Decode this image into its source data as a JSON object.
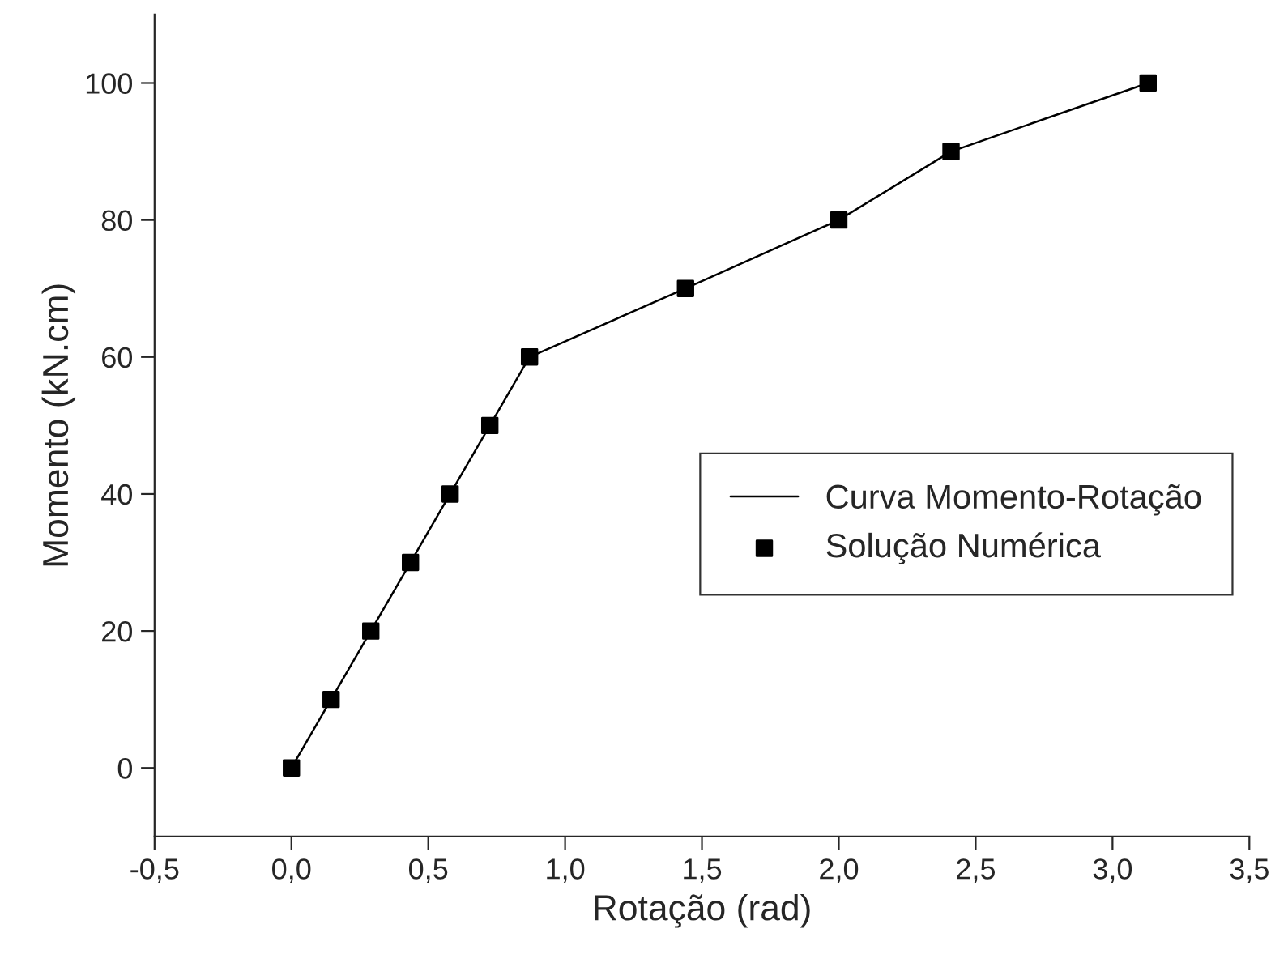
{
  "chart_data": {
    "type": "line",
    "xlabel": "Rotação (rad)",
    "ylabel": "Momento (kN.cm)",
    "xlim": [
      -0.5,
      3.5
    ],
    "ylim": [
      -10,
      110
    ],
    "xticks": [
      {
        "value": -0.5,
        "label": "-0,5"
      },
      {
        "value": 0,
        "label": "0,0"
      },
      {
        "value": 0.5,
        "label": "0,5"
      },
      {
        "value": 1.0,
        "label": "1,0"
      },
      {
        "value": 1.5,
        "label": "1,5"
      },
      {
        "value": 2.0,
        "label": "2,0"
      },
      {
        "value": 2.5,
        "label": "2,5"
      },
      {
        "value": 3.0,
        "label": "3,0"
      },
      {
        "value": 3.5,
        "label": "3,5"
      }
    ],
    "yticks": [
      0,
      20,
      40,
      60,
      80,
      100
    ],
    "legend": "right",
    "grid": false,
    "series": [
      {
        "name": "Curva Momento-Rotação",
        "color": "#000000",
        "marker": "none",
        "x": [
          0,
          0.145,
          0.29,
          0.435,
          0.58,
          0.725,
          0.87,
          1.44,
          2.0,
          2.41,
          3.13
        ],
        "values": [
          0,
          10,
          20,
          30,
          40,
          50,
          60,
          70,
          80,
          90,
          100
        ]
      },
      {
        "name": "Solução Numérica",
        "type": "scatter",
        "color": "#000000",
        "marker": "square",
        "x": [
          0,
          0.145,
          0.29,
          0.435,
          0.58,
          0.725,
          0.87,
          1.44,
          2.0,
          2.41,
          3.13
        ],
        "values": [
          0,
          10,
          20,
          30,
          40,
          50,
          60,
          70,
          80,
          90,
          100
        ]
      }
    ]
  }
}
